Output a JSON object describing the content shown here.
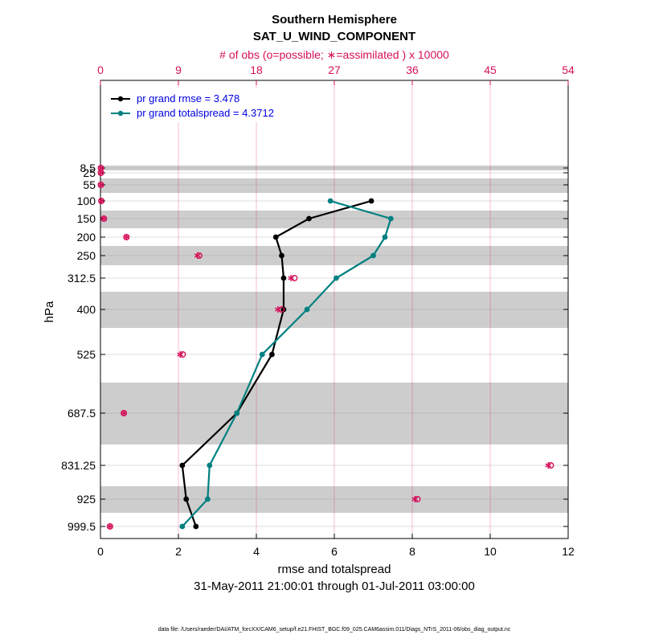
{
  "chart_data": {
    "type": "line",
    "title": "Southern Hemisphere",
    "subtitle": "SAT_U_WIND_COMPONENT",
    "top_axis_label": "# of obs (o=possible; ∗=assimilated ) x 10000",
    "xlabel": "rmse and totalspread",
    "ylabel": "hPa",
    "date_range": "31-May-2011 21:00:01 through 01-Jul-2011 03:00:00",
    "footnote": "data file: /Users/raeder/DAI/ATM_forcXX/CAM6_setup/f.e21.FHIST_BGC.f09_025.CAM6assim.011/Diags_NTrS_2011-06/obs_diag_output.nc",
    "xlim": [
      0,
      12
    ],
    "x_ticks": [
      "0",
      "2",
      "4",
      "6",
      "8",
      "10",
      "12"
    ],
    "top_xlim": [
      0,
      54
    ],
    "top_ticks": [
      "0",
      "9",
      "18",
      "27",
      "36",
      "45",
      "54"
    ],
    "y_levels": [
      8.5,
      25,
      55,
      100,
      150,
      200,
      250,
      312.5,
      400,
      525,
      687.5,
      831.25,
      925,
      999.5
    ],
    "y_tick_labels": [
      "8.5",
      "25",
      "55",
      "100",
      "150",
      "200",
      "250",
      "312.5",
      "400",
      "525",
      "687.5",
      "831.25",
      "925",
      "999.5"
    ],
    "series": [
      {
        "name": "pr grand rmse = 3.478",
        "color": "#000000",
        "levels": [
          100,
          150,
          200,
          250,
          312.5,
          400,
          525,
          687.5,
          831.25,
          925,
          999.5
        ],
        "values": [
          6.95,
          5.35,
          4.5,
          4.65,
          4.7,
          4.7,
          4.4,
          3.5,
          2.1,
          2.2,
          2.45
        ]
      },
      {
        "name": "pr grand totalspread = 4.3712",
        "color": "#008080",
        "levels": [
          100,
          150,
          200,
          250,
          312.5,
          400,
          525,
          687.5,
          831.25,
          925,
          999.5
        ],
        "values": [
          5.9,
          7.45,
          7.3,
          7.0,
          6.05,
          5.3,
          4.15,
          3.5,
          2.8,
          2.75,
          2.1
        ]
      }
    ],
    "obs_counts": {
      "color": "#d6105a",
      "levels": [
        8.5,
        25,
        55,
        100,
        150,
        200,
        250,
        312.5,
        400,
        525,
        687.5,
        831.25,
        925,
        999.5
      ],
      "possible": [
        0.05,
        0.05,
        0.05,
        0.1,
        0.4,
        3.0,
        11.4,
        22.4,
        20.9,
        9.5,
        2.7,
        52.0,
        36.6,
        1.1
      ],
      "assimilated": [
        0.05,
        0.05,
        0.05,
        0.1,
        0.4,
        3.0,
        11.2,
        22.0,
        20.5,
        9.2,
        2.7,
        51.7,
        36.3,
        1.1
      ]
    }
  }
}
